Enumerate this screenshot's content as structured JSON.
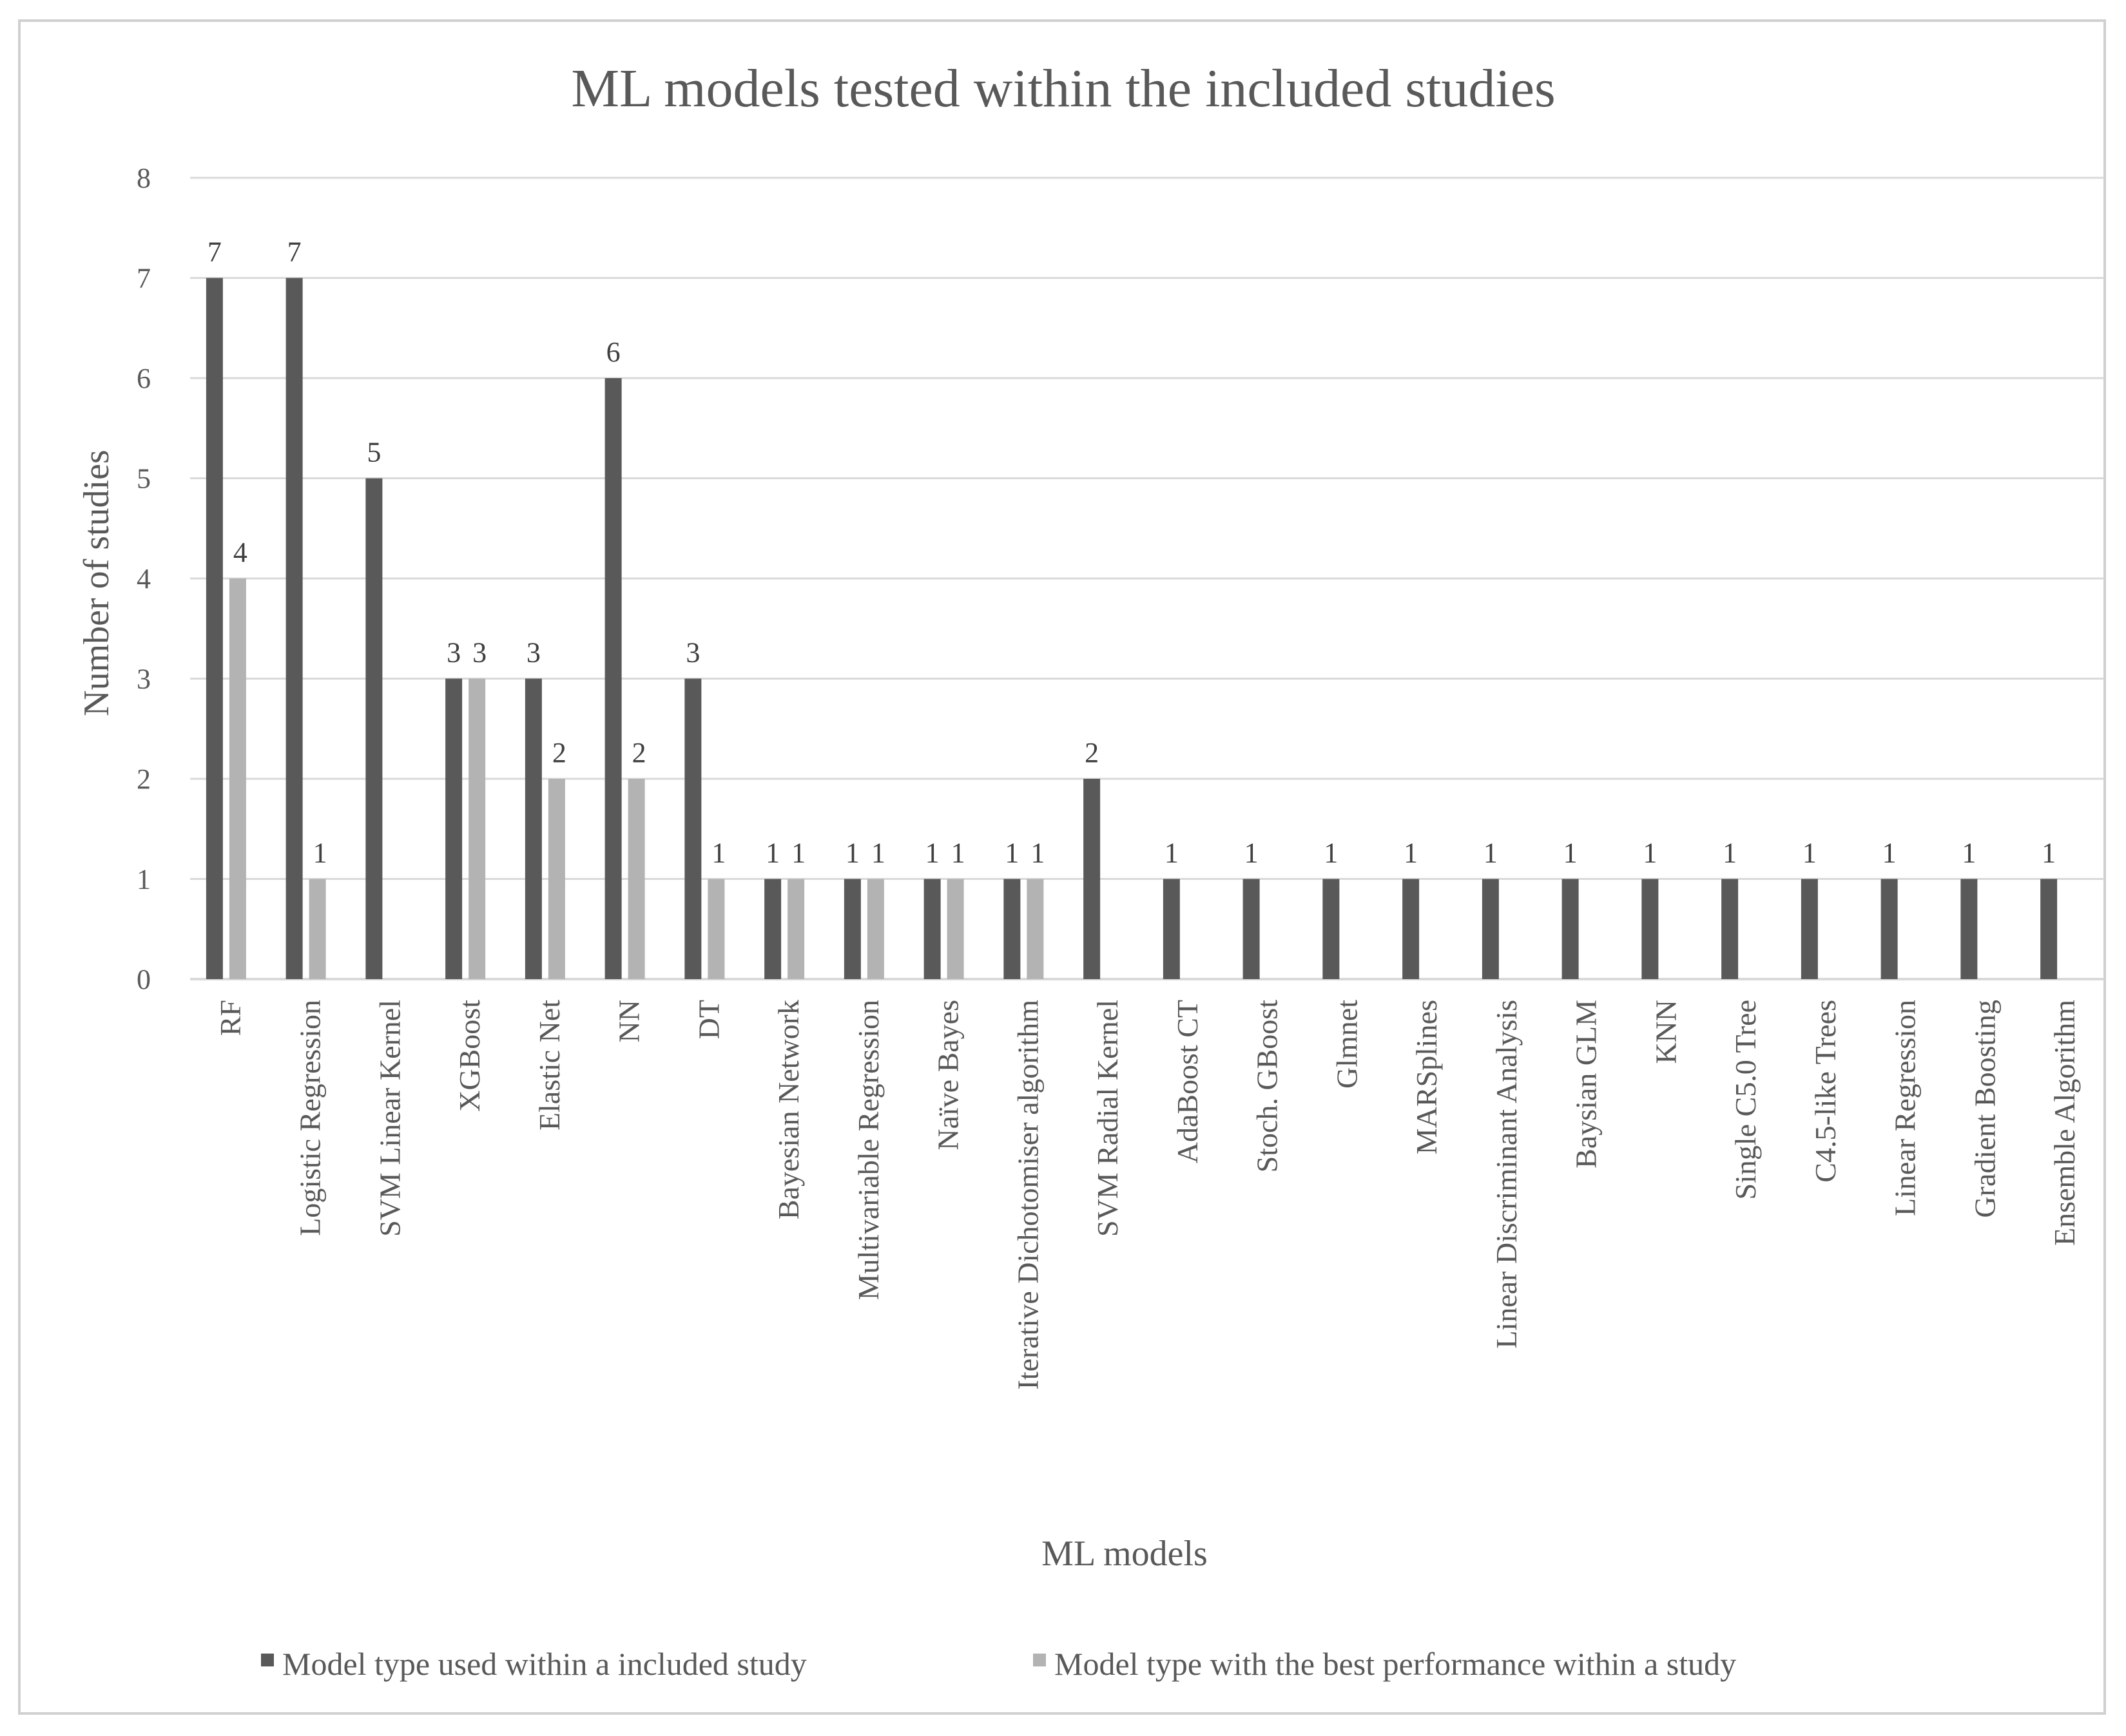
{
  "chart_data": {
    "type": "bar",
    "title": "ML models tested within the included studies",
    "xlabel": "ML models",
    "ylabel": "Number of studies",
    "ylim": [
      0,
      8
    ],
    "yticks": [
      "0",
      "1",
      "2",
      "3",
      "4",
      "5",
      "6",
      "7",
      "8"
    ],
    "grid": true,
    "legend_position": "bottom",
    "colors": {
      "series1": "#595959",
      "series2": "#b3b3b3",
      "grid": "#d9d9d9",
      "text": "#595959"
    },
    "categories": [
      "RF",
      "Logistic Regression",
      "SVM Linear Kernel",
      "XGBoost",
      "Elastic Net",
      "NN",
      "DT",
      "Bayesian Network",
      "Multivariable Regression",
      "Naïve Bayes",
      "Iterative Dichotomiser algorithm",
      "SVM Radial Kernel",
      "AdaBoost CT",
      "Stoch. GBoost",
      "Glmnet",
      "MARSplines",
      "Linear Discriminant Analysis",
      "Baysian GLM",
      "KNN",
      "Single C5.0 Tree",
      "C4.5-like Trees",
      "Linear Regression",
      "Gradient Boosting",
      "Ensemble Algorithm"
    ],
    "series": [
      {
        "name": "Model type used within a included study",
        "values": [
          7,
          7,
          5,
          3,
          3,
          6,
          3,
          1,
          1,
          1,
          1,
          2,
          1,
          1,
          1,
          1,
          1,
          1,
          1,
          1,
          1,
          1,
          1,
          1
        ]
      },
      {
        "name": "Model type with the best performance within a study",
        "values": [
          4,
          1,
          null,
          3,
          2,
          2,
          1,
          1,
          1,
          1,
          1,
          null,
          null,
          null,
          null,
          null,
          null,
          null,
          null,
          null,
          null,
          null,
          null,
          null
        ]
      }
    ]
  }
}
